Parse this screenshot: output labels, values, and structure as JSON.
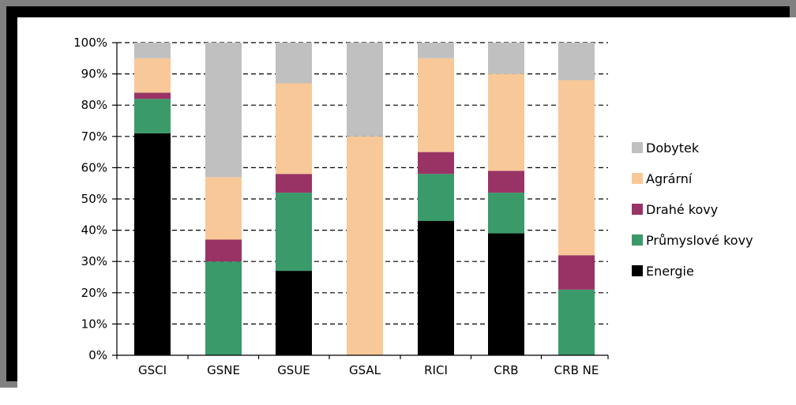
{
  "chart_data": {
    "type": "bar",
    "stacked": true,
    "categories": [
      "GSCI",
      "GSNE",
      "GSUE",
      "GSAL",
      "RICI",
      "CRB",
      "CRB NE"
    ],
    "series": [
      {
        "name": "Energie",
        "color": "#000000",
        "values": [
          71,
          0,
          27,
          0,
          43,
          39,
          0
        ]
      },
      {
        "name": "Průmyslové kovy",
        "color": "#3a9a6a",
        "values": [
          11,
          30,
          25,
          0,
          15,
          13,
          21
        ]
      },
      {
        "name": "Drahé kovy",
        "color": "#993366",
        "values": [
          2,
          7,
          6,
          0,
          7,
          7,
          11
        ]
      },
      {
        "name": "Agrární",
        "color": "#f8c898",
        "values": [
          11,
          20,
          29,
          70,
          30,
          31,
          56
        ]
      },
      {
        "name": "Dobytek",
        "color": "#c0c0c0",
        "values": [
          5,
          43,
          13,
          30,
          5,
          10,
          12
        ]
      }
    ],
    "yticks": [
      "0%",
      "10%",
      "20%",
      "30%",
      "40%",
      "50%",
      "60%",
      "70%",
      "80%",
      "90%",
      "100%"
    ],
    "ylim": [
      0,
      100
    ],
    "grid": "dashed horizontal",
    "legend_order": [
      "Dobytek",
      "Agrární",
      "Drahé kovy",
      "Průmyslové kovy",
      "Energie"
    ],
    "legend_position": "right"
  }
}
